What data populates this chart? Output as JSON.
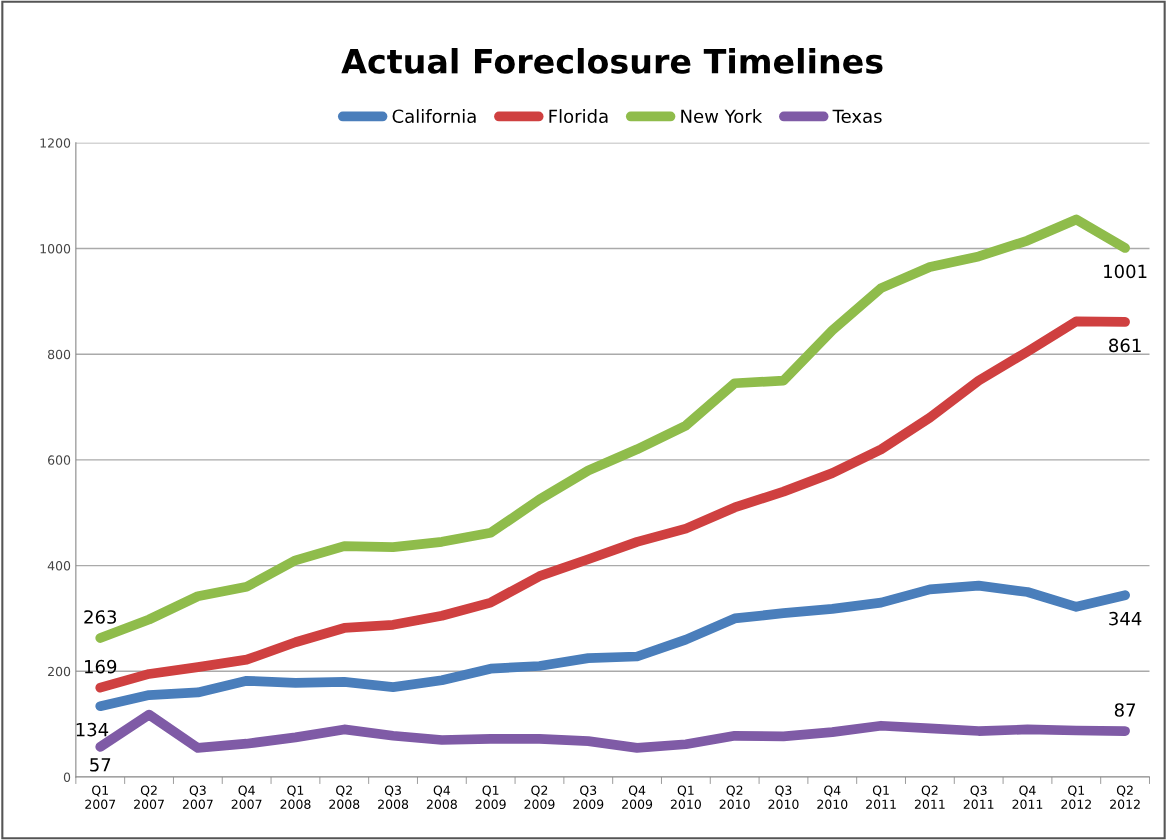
{
  "chart_data": {
    "type": "line",
    "title": "Actual Foreclosure Timelines",
    "categories": [
      "Q1\n2007",
      "Q2\n2007",
      "Q3\n2007",
      "Q4\n2007",
      "Q1\n2008",
      "Q2\n2008",
      "Q3\n2008",
      "Q4\n2008",
      "Q1\n2009",
      "Q2\n2009",
      "Q3\n2009",
      "Q4\n2009",
      "Q1\n2010",
      "Q2\n2010",
      "Q3\n2010",
      "Q4\n2010",
      "Q1\n2011",
      "Q2\n2011",
      "Q3\n2011",
      "Q4\n2011",
      "Q1\n2012",
      "Q2\n2012"
    ],
    "series": [
      {
        "name": "California",
        "color": "#4a7ebb",
        "values": [
          134,
          155,
          160,
          182,
          178,
          180,
          170,
          183,
          205,
          210,
          225,
          228,
          260,
          300,
          310,
          318,
          330,
          355,
          362,
          350,
          322,
          344
        ],
        "value_labels": [
          "134",
          null,
          null,
          null,
          null,
          null,
          null,
          null,
          null,
          null,
          null,
          null,
          null,
          null,
          null,
          null,
          null,
          null,
          null,
          null,
          null,
          "344"
        ]
      },
      {
        "name": "Florida",
        "color": "#cf4040",
        "values": [
          169,
          195,
          208,
          222,
          255,
          282,
          288,
          305,
          330,
          380,
          412,
          445,
          470,
          510,
          540,
          575,
          620,
          680,
          750,
          805,
          862,
          861
        ],
        "value_labels": [
          "169",
          null,
          null,
          null,
          null,
          null,
          null,
          null,
          null,
          null,
          null,
          null,
          null,
          null,
          null,
          null,
          null,
          null,
          null,
          null,
          null,
          "861"
        ]
      },
      {
        "name": "New York",
        "color": "#8fbc4b",
        "values": [
          263,
          298,
          342,
          360,
          410,
          437,
          435,
          445,
          462,
          525,
          580,
          620,
          665,
          745,
          750,
          845,
          925,
          965,
          985,
          1015,
          1055,
          1001
        ],
        "value_labels": [
          "263",
          null,
          null,
          null,
          null,
          null,
          null,
          null,
          null,
          null,
          null,
          null,
          null,
          null,
          null,
          null,
          null,
          null,
          null,
          null,
          null,
          "1001"
        ]
      },
      {
        "name": "Texas",
        "color": "#7f5ba6",
        "values": [
          57,
          118,
          55,
          63,
          75,
          90,
          78,
          70,
          72,
          72,
          68,
          55,
          62,
          78,
          77,
          85,
          97,
          92,
          87,
          90,
          88,
          87
        ],
        "value_labels": [
          "57",
          null,
          null,
          null,
          null,
          null,
          null,
          null,
          null,
          null,
          null,
          null,
          null,
          null,
          null,
          null,
          null,
          null,
          null,
          null,
          null,
          "87"
        ]
      }
    ],
    "ylim": [
      0,
      1200
    ],
    "yticks": [
      0,
      200,
      400,
      600,
      800,
      1000,
      1200
    ],
    "grid": "y",
    "legend": "top",
    "marker": "none",
    "line_style": "solid"
  }
}
